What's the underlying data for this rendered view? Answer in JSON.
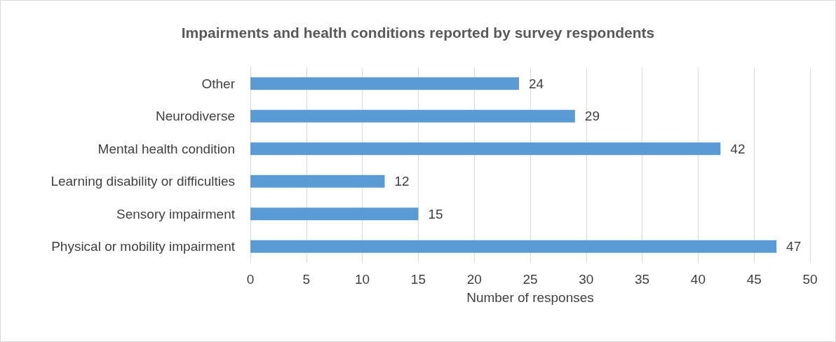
{
  "chart_data": {
    "type": "bar",
    "orientation": "horizontal",
    "title": "Impairments and health conditions reported by survey respondents",
    "categories": [
      "Other",
      "Neurodiverse",
      "Mental health condition",
      "Learning disability or difficulties",
      "Sensory impairment",
      "Physical or mobility impairment"
    ],
    "values": [
      24,
      29,
      42,
      12,
      15,
      47
    ],
    "color": "#5b9bd5",
    "xlabel": "Number of responses",
    "xlim": [
      0,
      50
    ],
    "xticks": [
      0,
      5,
      10,
      15,
      20,
      25,
      30,
      35,
      40,
      45,
      50
    ],
    "grid": "x",
    "data_labels": true
  }
}
